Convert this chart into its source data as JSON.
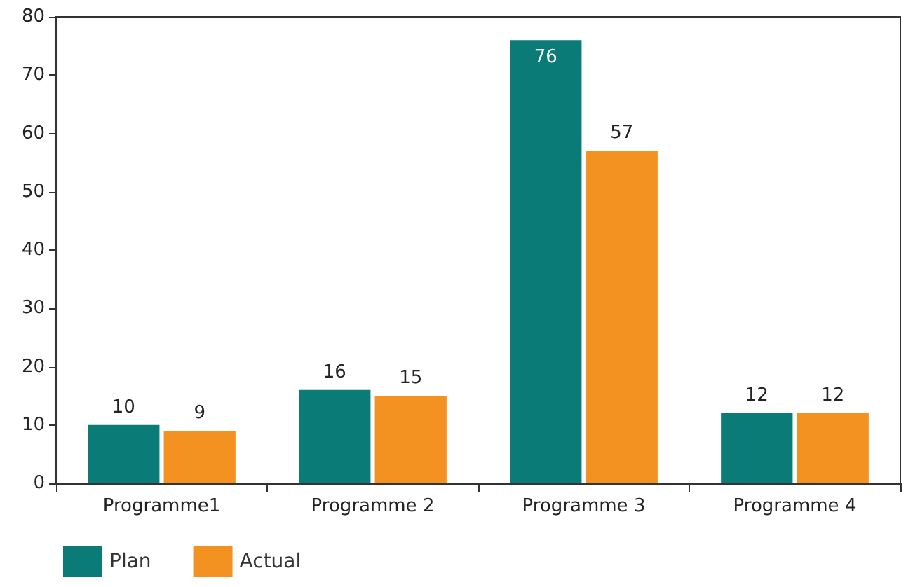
{
  "chart_data": {
    "type": "bar",
    "categories": [
      "Programme1",
      "Programme 2",
      "Programme 3",
      "Programme 4"
    ],
    "series": [
      {
        "name": "Plan",
        "color": "#0a7b77",
        "values": [
          10,
          16,
          76,
          12
        ]
      },
      {
        "name": "Actual",
        "color": "#f39121",
        "values": [
          9,
          15,
          57,
          12
        ]
      }
    ],
    "ylim": [
      0,
      80
    ],
    "yticks": [
      0,
      10,
      20,
      30,
      40,
      50,
      60,
      70,
      80
    ],
    "grid": false,
    "legend": "bottom left",
    "data_labels": true
  }
}
